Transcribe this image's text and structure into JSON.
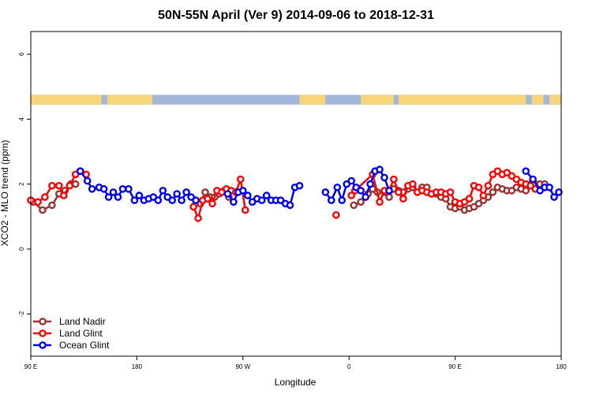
{
  "chart_data": {
    "type": "line",
    "title": "50N-55N April (Ver 9)   2014-09-06 to 2018-12-31",
    "xlabel": "Longitude",
    "ylabel": "XCO2 - MLO trend (ppm)",
    "xlim": [
      90,
      540
    ],
    "ylim": [
      -3.3,
      6.7
    ],
    "xticks": [
      {
        "value": 90,
        "label": "90 E"
      },
      {
        "value": 180,
        "label": "180"
      },
      {
        "value": 270,
        "label": "90 W"
      },
      {
        "value": 360,
        "label": "0"
      },
      {
        "value": 450,
        "label": "90 E"
      },
      {
        "value": 540,
        "label": "180"
      }
    ],
    "yticks": [
      {
        "value": -2,
        "label": "-2"
      },
      {
        "value": 0,
        "label": "0"
      },
      {
        "value": 2,
        "label": "2"
      },
      {
        "value": 4,
        "label": "4"
      },
      {
        "value": 6,
        "label": "6"
      }
    ],
    "grid": false,
    "legend_position": "bottom-left",
    "land_sea_band": {
      "y_range": [
        4.45,
        4.75
      ],
      "ocean_color": "#a3b7d9",
      "land_color": "#f7d57a",
      "land_x_ranges": [
        [
          90,
          100
        ],
        [
          100,
          132
        ],
        [
          132,
          150
        ],
        [
          155,
          185
        ],
        [
          185,
          193
        ],
        [
          318,
          340
        ],
        [
          370,
          398
        ],
        [
          402,
          510
        ],
        [
          515,
          525
        ],
        [
          530,
          540
        ]
      ]
    },
    "series": [
      {
        "name": "Land Nadir",
        "color": "#993333",
        "x": [
          [
            [
              92,
              100,
              108,
              114,
              119,
              124,
              128
            ],
            [
              230,
              234,
              238,
              242,
              246,
              250,
              254,
              258
            ],
            [
              364,
              370,
              376,
              380,
              384,
              390,
              394,
              398,
              402,
              406,
              410,
              414,
              418,
              422,
              426,
              430,
              434,
              438,
              442,
              446,
              450,
              454,
              458,
              462,
              466,
              470,
              474,
              478,
              482,
              486,
              490,
              494,
              498,
              502,
              506,
              510,
              514,
              518,
              522,
              526
            ]
          ]
        ],
        "y": [
          [
            [
              1.45,
              1.2,
              1.35,
              1.7,
              1.8,
              2.0,
              2.0
            ],
            [
              1.4,
              1.4,
              1.75,
              1.6,
              1.6,
              1.7,
              1.8,
              1.6
            ],
            [
              1.35,
              1.45,
              1.7,
              1.85,
              1.75,
              1.75,
              1.6,
              1.85,
              1.8,
              1.75,
              1.85,
              1.9,
              1.75,
              1.9,
              1.9,
              1.7,
              1.7,
              1.6,
              1.55,
              1.3,
              1.25,
              1.3,
              1.2,
              1.25,
              1.3,
              1.4,
              1.5,
              1.6,
              1.75,
              1.9,
              1.85,
              1.8,
              1.8,
              1.9,
              1.85,
              1.8,
              2.0,
              2.0,
              2.0,
              2.0
            ]
          ]
        ]
      },
      {
        "name": "Land Glint",
        "color": "#ff0000",
        "x": [
          [
            [
              90,
              96,
              102,
              108,
              114,
              118,
              123,
              128,
              132,
              137
            ],
            [
              228,
              232,
              236,
              240,
              244,
              248,
              252,
              256,
              260,
              264,
              268,
              272
            ],
            [
              349
            ],
            [
              362,
              365,
              380,
              386,
              390,
              394,
              398,
              402,
              406,
              410,
              414,
              418,
              422,
              426,
              430,
              434,
              438,
              442,
              446,
              450,
              454,
              458,
              462,
              466,
              470,
              474,
              478,
              482,
              486,
              490,
              494,
              498,
              502,
              506,
              510,
              514,
              518
            ]
          ]
        ],
        "y": [
          [
            [
              1.5,
              1.45,
              1.6,
              1.95,
              1.95,
              1.65,
              1.95,
              2.3,
              2.4,
              2.3
            ],
            [
              1.3,
              0.95,
              1.5,
              1.55,
              1.4,
              1.8,
              1.75,
              1.85,
              1.8,
              1.75,
              2.15,
              1.2
            ],
            [
              1.05
            ],
            [
              1.65,
              1.8,
              2.3,
              1.45,
              1.8,
              1.8,
              2.15,
              1.75,
              1.55,
              1.95,
              2.0,
              1.75,
              1.8,
              1.75,
              1.7,
              1.75,
              1.75,
              1.7,
              1.75,
              1.45,
              1.4,
              1.45,
              1.55,
              1.95,
              1.9,
              1.65,
              1.95,
              2.3,
              2.4,
              2.3,
              2.35,
              2.25,
              2.15,
              2.05,
              2.0,
              1.95,
              1.85
            ]
          ]
        ]
      },
      {
        "name": "Ocean Glint",
        "color": "#0000ee",
        "x": [
          [
            [
              132,
              138,
              142,
              148,
              152,
              156,
              160,
              164,
              168,
              173,
              178,
              182,
              186,
              190,
              194,
              198,
              202,
              206,
              210,
              214,
              218,
              222,
              226,
              230
            ],
            [
              257,
              262,
              266,
              270,
              274,
              278,
              282,
              286,
              290,
              294,
              298,
              302,
              306,
              310,
              314,
              318
            ],
            [
              340,
              345,
              350,
              354,
              358,
              362,
              366,
              370,
              374,
              378,
              382,
              386,
              390,
              394
            ],
            [
              510,
              516,
              522,
              526,
              530,
              534,
              538
            ]
          ]
        ],
        "y": [
          [
            [
              2.4,
              2.1,
              1.85,
              1.9,
              1.85,
              1.6,
              1.75,
              1.6,
              1.85,
              1.85,
              1.5,
              1.65,
              1.5,
              1.55,
              1.6,
              1.5,
              1.8,
              1.6,
              1.5,
              1.7,
              1.5,
              1.75,
              1.6,
              1.5
            ],
            [
              1.7,
              1.45,
              1.75,
              1.8,
              1.65,
              1.45,
              1.55,
              1.5,
              1.65,
              1.5,
              1.5,
              1.5,
              1.4,
              1.35,
              1.9,
              1.95
            ],
            [
              1.75,
              1.5,
              1.9,
              1.5,
              2.0,
              2.1,
              1.9,
              1.8,
              1.6,
              2.0,
              2.4,
              2.45,
              2.2,
              1.8
            ],
            [
              2.4,
              2.15,
              1.8,
              1.9,
              1.9,
              1.6,
              1.75
            ]
          ]
        ]
      }
    ]
  }
}
